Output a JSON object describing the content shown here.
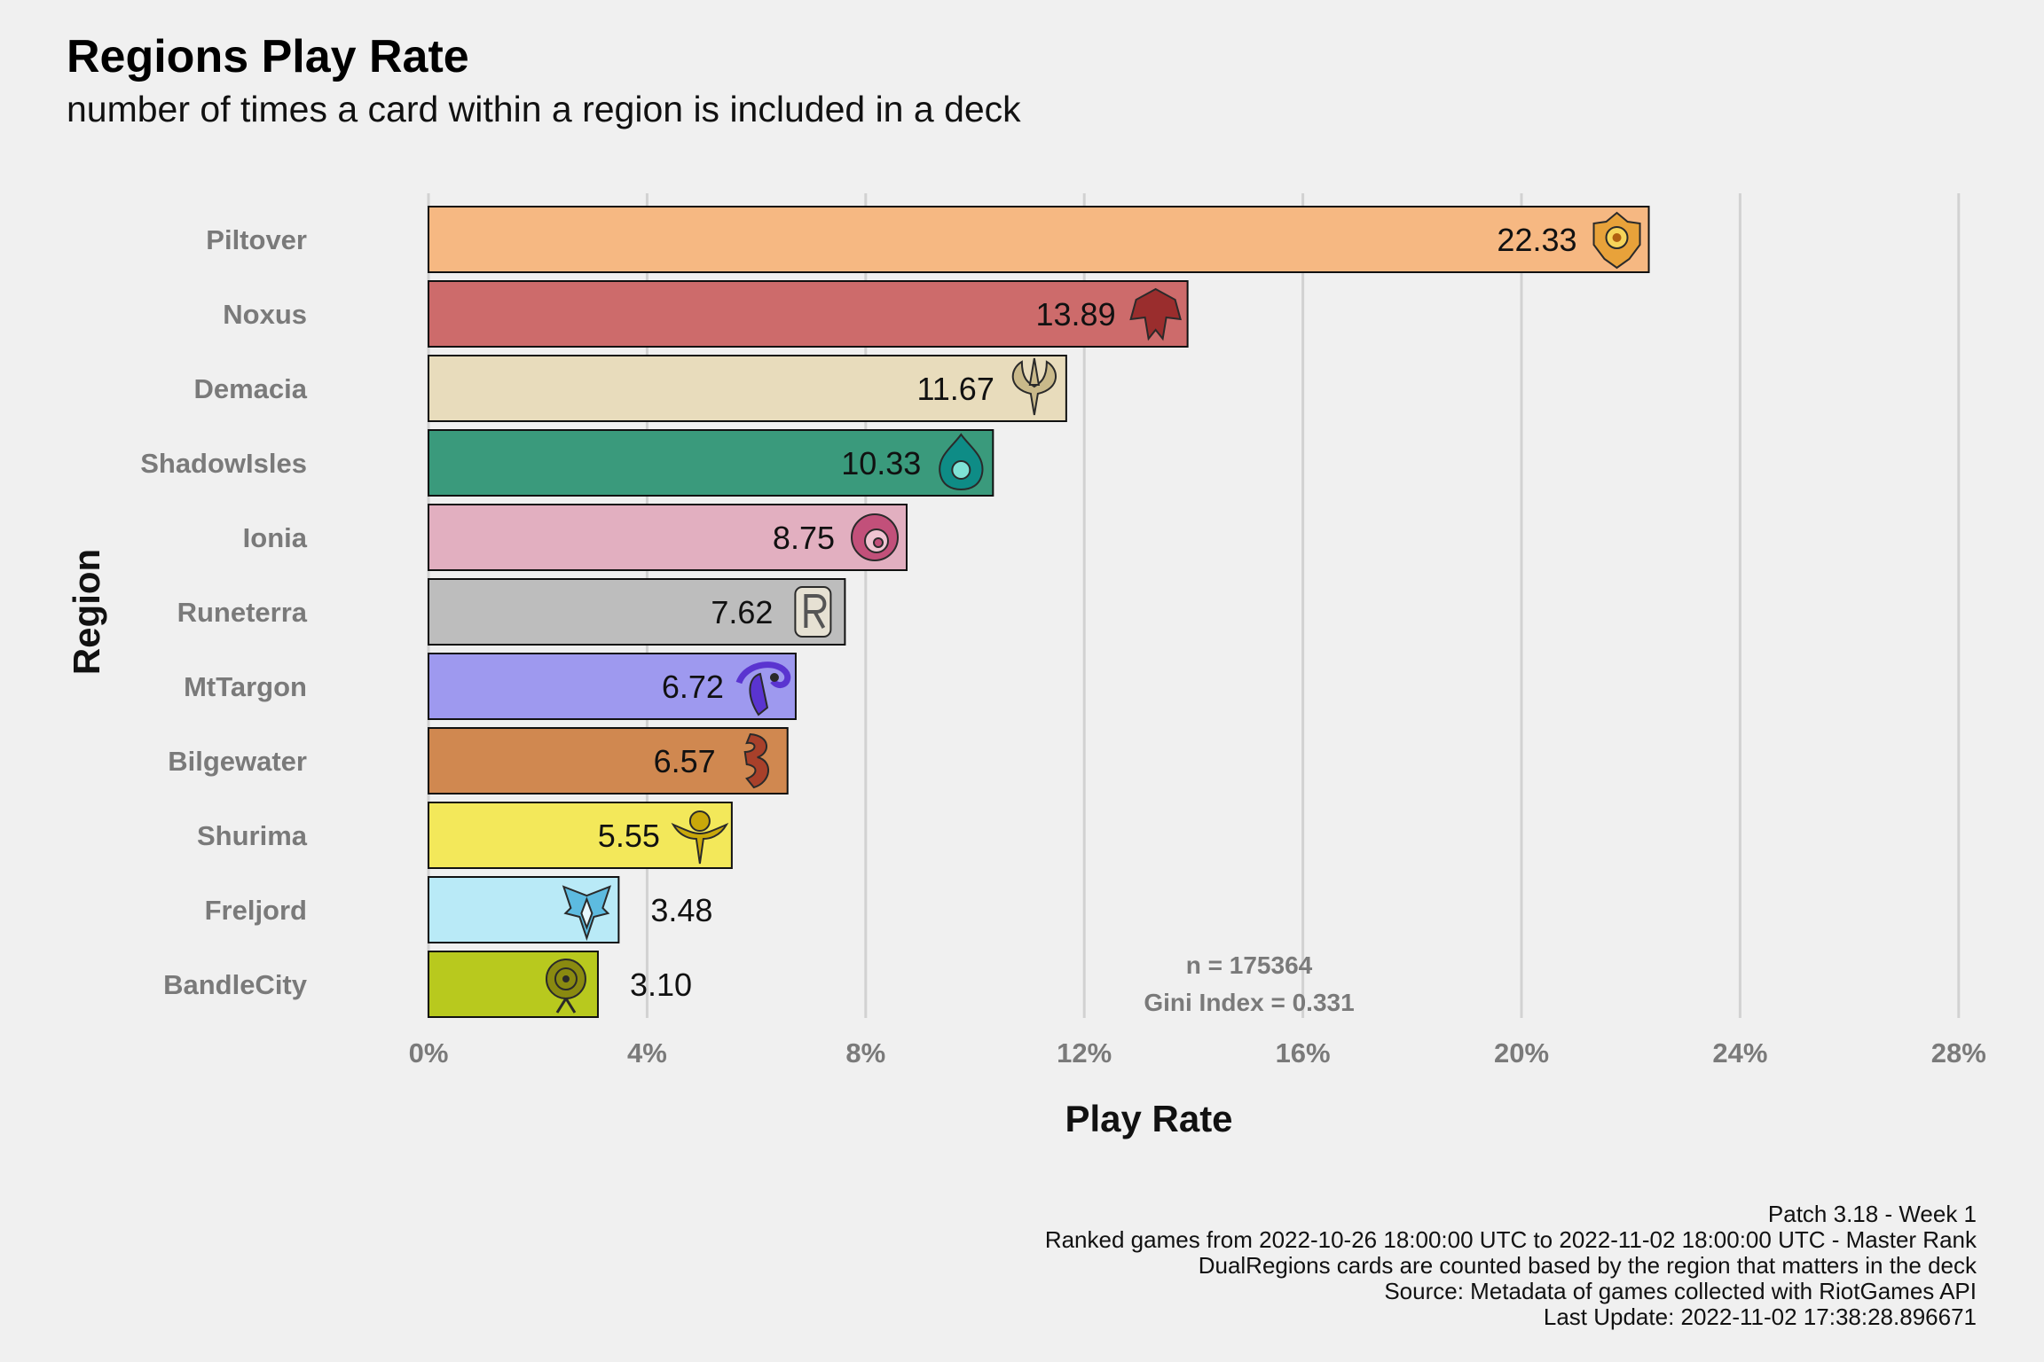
{
  "chart_data": {
    "type": "bar",
    "orientation": "horizontal",
    "title": "Regions Play Rate",
    "subtitle": "number of times a card within a region is included in a deck",
    "xlabel": "Play Rate",
    "ylabel": "Region",
    "xlim": [
      0,
      28
    ],
    "x_ticks": [
      0,
      4,
      8,
      12,
      16,
      20,
      24,
      28
    ],
    "x_tick_labels": [
      "0%",
      "4%",
      "8%",
      "12%",
      "16%",
      "20%",
      "24%",
      "28%"
    ],
    "grid": "vertical major gridlines",
    "categories": [
      "Piltover",
      "Noxus",
      "Demacia",
      "ShadowIsles",
      "Ionia",
      "Runeterra",
      "MtTargon",
      "Bilgewater",
      "Shurima",
      "Freljord",
      "BandleCity"
    ],
    "values": [
      22.33,
      13.89,
      11.67,
      10.33,
      8.75,
      7.62,
      6.72,
      6.57,
      5.55,
      3.48,
      3.1
    ],
    "value_labels": [
      "22.33",
      "13.89",
      "11.67",
      "10.33",
      "8.75",
      "7.62",
      "6.72",
      "6.57",
      "5.55",
      "3.48",
      "3.10"
    ],
    "colors": [
      "#f6b882",
      "#cd6b6b",
      "#e8dcbc",
      "#3a9a7c",
      "#e2afc0",
      "#bdbdbd",
      "#9e99ef",
      "#d08850",
      "#f3e85a",
      "#b9eaf7",
      "#b8c91e"
    ],
    "icons": [
      "piltover-emblem-icon",
      "noxus-emblem-icon",
      "demacia-emblem-icon",
      "shadow-isles-emblem-icon",
      "ionia-emblem-icon",
      "runeterra-emblem-icon",
      "mount-targon-emblem-icon",
      "bilgewater-emblem-icon",
      "shurima-emblem-icon",
      "freljord-emblem-icon",
      "bandle-city-emblem-icon"
    ],
    "icon_colors": [
      "#e8a23a",
      "#9a2d2d",
      "#c9b98a",
      "#0e8c86",
      "#c2507a",
      "#9a9a9a",
      "#5a34d0",
      "#a8402a",
      "#c9a80a",
      "#5dbbe0",
      "#8a8a10"
    ],
    "annotations": [
      "n = 175364",
      "Gini Index = 0.331"
    ]
  },
  "caption": [
    "Patch 3.18 - Week 1",
    "Ranked games from 2022-10-26 18:00:00 UTC to 2022-11-02 18:00:00 UTC - Master Rank",
    "DualRegions cards are counted based by the region that matters in the deck",
    "Source: Metadata of games collected with RiotGames API",
    "Last Update: 2022-11-02 17:38:28.896671"
  ]
}
